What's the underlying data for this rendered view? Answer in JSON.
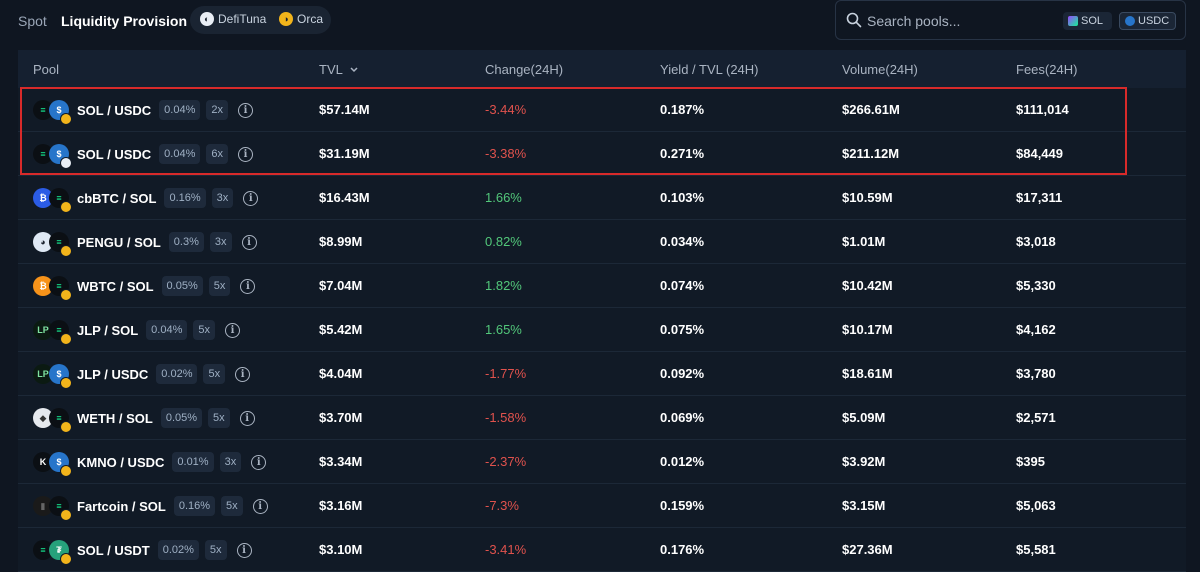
{
  "nav": {
    "tab_spot": "Spot",
    "tab_lp": "Liquidity Provision",
    "protocols": [
      {
        "label": "DefiTuna",
        "icon": "tuna-icon"
      },
      {
        "label": "Orca",
        "icon": "orca-icon"
      }
    ]
  },
  "search": {
    "placeholder": "Search pools...",
    "chips": [
      "SOL",
      "USDC"
    ]
  },
  "table": {
    "headers": {
      "pool": "Pool",
      "tvl": "TVL",
      "change": "Change(24H)",
      "yield": "Yield / TVL (24H)",
      "volume": "Volume(24H)",
      "fees": "Fees(24H)"
    },
    "sort_icon": "chevron-down-icon",
    "rows": [
      {
        "pool": "SOL / USDC",
        "fee": "0.04%",
        "lev": "2x",
        "tvl": "$57.14M",
        "change": "-3.44%",
        "yield": "0.187%",
        "volume": "$266.61M",
        "fees": "$111,014"
      },
      {
        "pool": "SOL / USDC",
        "fee": "0.04%",
        "lev": "6x",
        "tvl": "$31.19M",
        "change": "-3.38%",
        "yield": "0.271%",
        "volume": "$211.12M",
        "fees": "$84,449"
      },
      {
        "pool": "cbBTC / SOL",
        "fee": "0.16%",
        "lev": "3x",
        "tvl": "$16.43M",
        "change": "1.66%",
        "yield": "0.103%",
        "volume": "$10.59M",
        "fees": "$17,311"
      },
      {
        "pool": "PENGU / SOL",
        "fee": "0.3%",
        "lev": "3x",
        "tvl": "$8.99M",
        "change": "0.82%",
        "yield": "0.034%",
        "volume": "$1.01M",
        "fees": "$3,018"
      },
      {
        "pool": "WBTC / SOL",
        "fee": "0.05%",
        "lev": "5x",
        "tvl": "$7.04M",
        "change": "1.82%",
        "yield": "0.074%",
        "volume": "$10.42M",
        "fees": "$5,330"
      },
      {
        "pool": "JLP / SOL",
        "fee": "0.04%",
        "lev": "5x",
        "tvl": "$5.42M",
        "change": "1.65%",
        "yield": "0.075%",
        "volume": "$10.17M",
        "fees": "$4,162"
      },
      {
        "pool": "JLP / USDC",
        "fee": "0.02%",
        "lev": "5x",
        "tvl": "$4.04M",
        "change": "-1.77%",
        "yield": "0.092%",
        "volume": "$18.61M",
        "fees": "$3,780"
      },
      {
        "pool": "WETH / SOL",
        "fee": "0.05%",
        "lev": "5x",
        "tvl": "$3.70M",
        "change": "-1.58%",
        "yield": "0.069%",
        "volume": "$5.09M",
        "fees": "$2,571"
      },
      {
        "pool": "KMNO / USDC",
        "fee": "0.01%",
        "lev": "3x",
        "tvl": "$3.34M",
        "change": "-2.37%",
        "yield": "0.012%",
        "volume": "$3.92M",
        "fees": "$395"
      },
      {
        "pool": "Fartcoin / SOL",
        "fee": "0.16%",
        "lev": "5x",
        "tvl": "$3.16M",
        "change": "-7.3%",
        "yield": "0.159%",
        "volume": "$3.15M",
        "fees": "$5,063"
      },
      {
        "pool": "SOL / USDT",
        "fee": "0.02%",
        "lev": "5x",
        "tvl": "$3.10M",
        "change": "-3.41%",
        "yield": "0.176%",
        "volume": "$27.36M",
        "fees": "$5,581"
      }
    ]
  },
  "colors": {
    "negative": "#e0524d",
    "positive": "#52c77a",
    "highlight_border": "#d82a2a"
  }
}
